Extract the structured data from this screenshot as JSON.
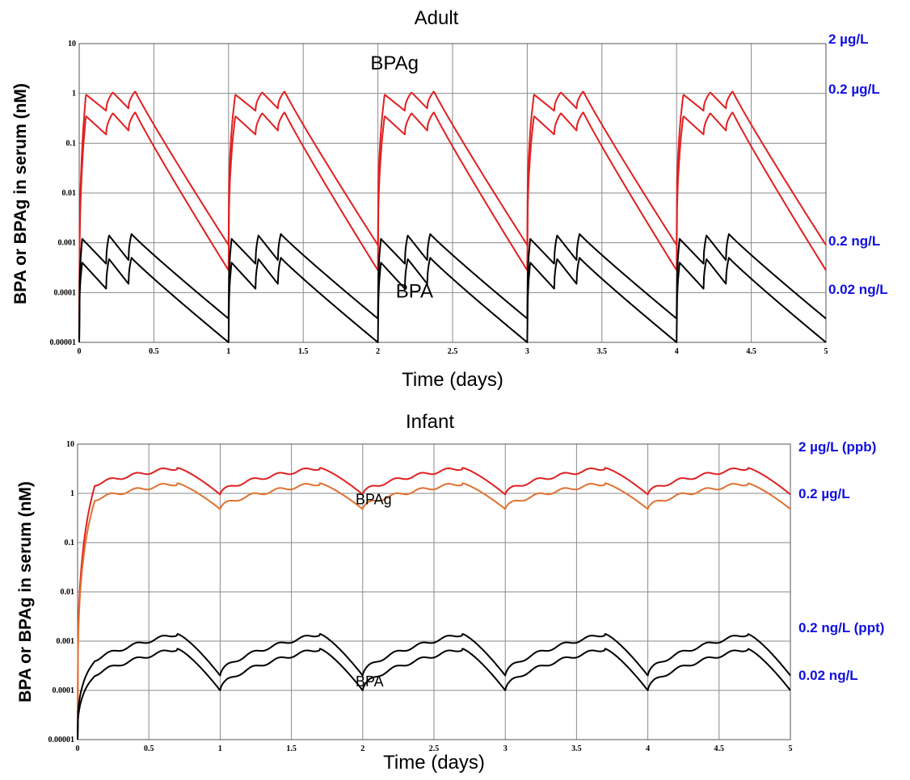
{
  "chart_data": [
    {
      "type": "line",
      "title": "Adult",
      "xlabel": "Time (days)",
      "ylabel": "BPA or BPAg  in serum (nM)",
      "xlim": [
        0,
        5
      ],
      "ylim": [
        1e-05,
        10
      ],
      "yscale": "log",
      "grid": true,
      "x_ticks": [
        "0",
        "0.5",
        "1",
        "1.5",
        "2",
        "2.5",
        "3",
        "3.5",
        "4",
        "4.5",
        "5"
      ],
      "y_ticks": [
        "0.00001",
        "0.0001",
        "0.001",
        "0.01",
        "0.1",
        "1",
        "10"
      ],
      "annotations": [
        {
          "text": "BPAg",
          "x": 1.95,
          "y": 3
        },
        {
          "text": "BPA",
          "x": 2.12,
          "y": 8e-05
        }
      ],
      "right_labels": [
        {
          "text": "2 µg/L",
          "y": 10
        },
        {
          "text": "0.2 µg/L",
          "y": 1
        },
        {
          "text": "0.2 ng/L",
          "y": 0.001
        },
        {
          "text": "0.02 ng/L",
          "y": 0.0001
        }
      ],
      "doses_per_day": [
        0,
        0.18,
        0.33
      ],
      "series": [
        {
          "color": "#e02020",
          "group": "BPAg",
          "peaks": [
            0.95,
            1.05,
            1.1
          ],
          "troughs": [
            0.45,
            0.5
          ],
          "end": 0.0009,
          "t_peak": 0.045
        },
        {
          "color": "#e02020",
          "group": "BPAg",
          "peaks": [
            0.35,
            0.4,
            0.42
          ],
          "troughs": [
            0.15,
            0.18
          ],
          "end": 0.00028,
          "t_peak": 0.045
        },
        {
          "color": "#000000",
          "group": "BPA",
          "peaks": [
            0.0012,
            0.0014,
            0.0015
          ],
          "troughs": [
            0.00038,
            0.00045
          ],
          "end": 3e-05,
          "t_peak": 0.02
        },
        {
          "color": "#000000",
          "group": "BPA",
          "peaks": [
            0.0004,
            0.00047,
            0.0005
          ],
          "troughs": [
            0.00012,
            0.00015
          ],
          "end": 1e-05,
          "t_peak": 0.02
        }
      ]
    },
    {
      "type": "line",
      "title": "Infant",
      "xlabel": "Time (days)",
      "ylabel": "BPA or BPAg  in serum (nM)",
      "xlim": [
        0,
        5
      ],
      "ylim": [
        1e-05,
        10
      ],
      "yscale": "log",
      "grid": true,
      "x_ticks": [
        "0",
        "0.5",
        "1",
        "1.5",
        "2",
        "2.5",
        "3",
        "3.5",
        "4",
        "4.5",
        "5"
      ],
      "y_ticks": [
        "0.00001",
        "0.0001",
        "0.001",
        "0.01",
        "0.1",
        "1",
        "10"
      ],
      "annotations": [
        {
          "text": "BPAg",
          "x": 1.95,
          "y": 0.6
        },
        {
          "text": "BPA",
          "x": 1.95,
          "y": 0.00012
        }
      ],
      "right_labels": [
        {
          "text": "2 µg/L (ppb)",
          "y": 10
        },
        {
          "text": "0.2 µg/L",
          "y": 1
        },
        {
          "text": "0.2 ng/L (ppt)",
          "y": 0.001
        },
        {
          "text": "0.02 ng/L",
          "y": 0.0001
        }
      ],
      "series": [
        {
          "color": "#e02020",
          "group": "BPAg",
          "start": 0.95,
          "peak": 3.3,
          "t_peak": 0.7
        },
        {
          "color": "#e07030",
          "group": "BPAg",
          "start": 0.48,
          "peak": 1.6,
          "t_peak": 0.7
        },
        {
          "color": "#000000",
          "group": "BPA",
          "start": 0.0002,
          "peak": 0.0014,
          "t_peak": 0.7
        },
        {
          "color": "#000000",
          "group": "BPA",
          "start": 0.0001,
          "peak": 0.0007,
          "t_peak": 0.7
        }
      ]
    }
  ]
}
